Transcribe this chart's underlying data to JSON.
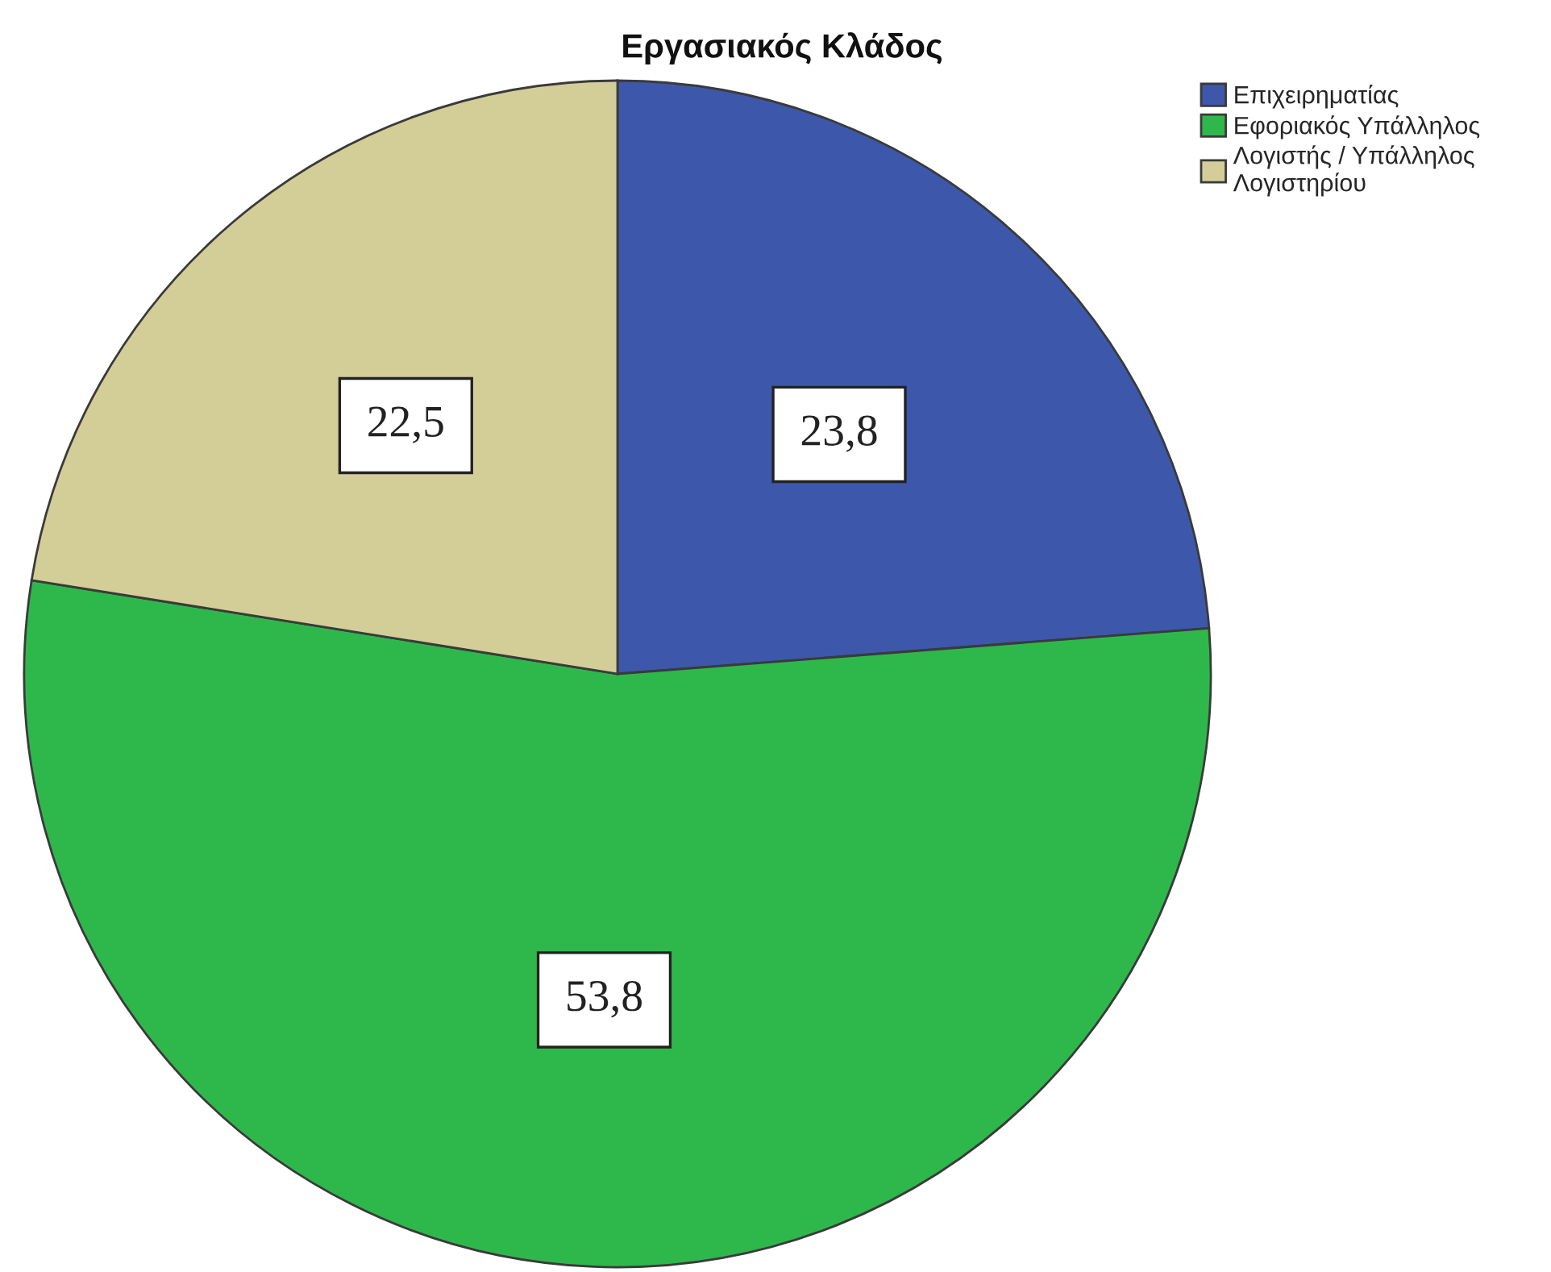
{
  "chart_data": {
    "type": "pie",
    "title": "Εργασιακός Κλάδος",
    "categories": [
      "Επιχειρηματίας",
      "Εφοριακός Υπάλληλος",
      "Λογιστής / Υπάλληλος Λογιστηρίου"
    ],
    "values": [
      23.8,
      53.8,
      22.5
    ],
    "colors": [
      "#3d58ab",
      "#2eb84b",
      "#d3ce98"
    ],
    "value_labels": [
      "23,8",
      "53,8",
      "22,5"
    ],
    "legend": "top right"
  }
}
